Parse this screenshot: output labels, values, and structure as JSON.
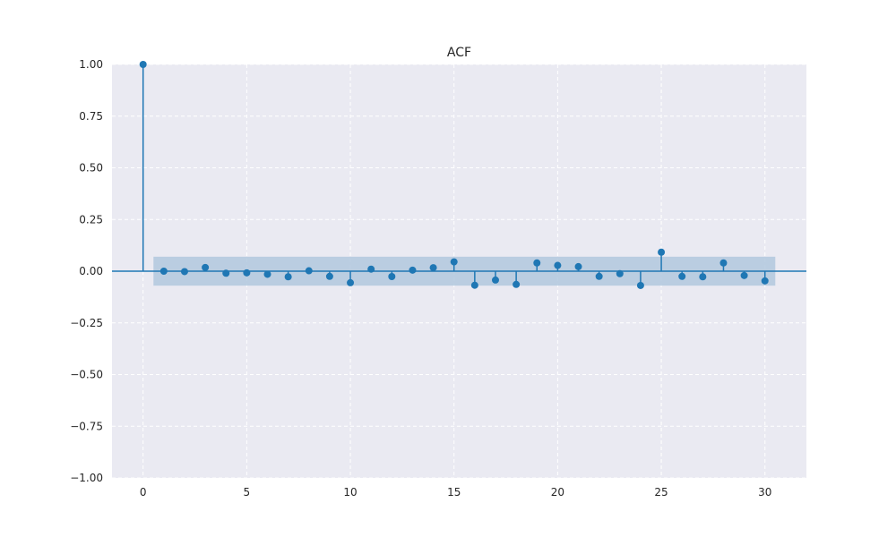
{
  "chart_data": {
    "type": "stem",
    "title": "ACF",
    "xlabel": "",
    "ylabel": "",
    "xlim": [
      -1.5,
      32
    ],
    "ylim": [
      -1.0,
      1.0
    ],
    "x_ticks": [
      0,
      5,
      10,
      15,
      20,
      25,
      30
    ],
    "x_tick_labels": [
      "0",
      "5",
      "10",
      "15",
      "20",
      "25",
      "30"
    ],
    "y_ticks": [
      1.0,
      0.75,
      0.5,
      0.25,
      0.0,
      -0.25,
      -0.5,
      -0.75,
      -1.0
    ],
    "y_tick_labels": [
      "1.00",
      "0.75",
      "0.50",
      "0.25",
      "0.00",
      "−0.25",
      "−0.50",
      "−0.75",
      "−1.00"
    ],
    "grid": true,
    "confidence_band": {
      "x_range": [
        0.5,
        30.5
      ],
      "upper": 0.07,
      "lower": -0.07
    },
    "lags": [
      0,
      1,
      2,
      3,
      4,
      5,
      6,
      7,
      8,
      9,
      10,
      11,
      12,
      13,
      14,
      15,
      16,
      17,
      18,
      19,
      20,
      21,
      22,
      23,
      24,
      25,
      26,
      27,
      28,
      29,
      30
    ],
    "values": [
      1.0,
      0.0,
      -0.002,
      0.018,
      -0.01,
      -0.008,
      -0.015,
      -0.027,
      0.002,
      -0.025,
      -0.056,
      0.01,
      -0.026,
      0.005,
      0.017,
      0.045,
      -0.068,
      -0.043,
      -0.064,
      0.04,
      0.028,
      0.022,
      -0.025,
      -0.012,
      -0.069,
      0.092,
      -0.025,
      -0.027,
      0.04,
      -0.021,
      -0.047
    ]
  },
  "colors": {
    "axes_background": "#eaeaf2",
    "grid": "#ffffff",
    "series": "#1f77b4",
    "band": "#b2c8de"
  }
}
